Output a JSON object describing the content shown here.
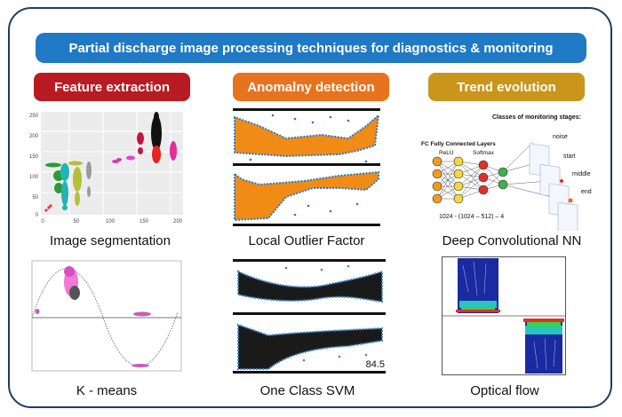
{
  "title": "Partial discharge image processing techniques for diagnostics & monitoring",
  "colors": {
    "banner": "#1f79c4",
    "feature": "#b81c22",
    "anomaly": "#e8731e",
    "trend": "#c9951b",
    "frame": "#1f3c63"
  },
  "columns": [
    {
      "header": "Feature extraction",
      "methods": [
        "Image segmentation",
        "K - means"
      ]
    },
    {
      "header": "Anomalny detection",
      "methods": [
        "Local Outlier Factor",
        "One Class SVM"
      ]
    },
    {
      "header": "Trend evolution",
      "methods": [
        "Deep Convolutional NN",
        "Optical flow"
      ]
    }
  ],
  "segmentation_chart": {
    "y_ticks": [
      "250",
      "200",
      "150",
      "100",
      "50",
      "0"
    ],
    "x_ticks": [
      "0",
      "50",
      "100",
      "150",
      "200"
    ]
  },
  "cnn": {
    "stages_title": "Classes of monitoring stages:",
    "stages": [
      "noise",
      "start",
      "middle",
      "end"
    ],
    "fc_title": "FC Fully Connected Layers",
    "relu_label": "ReLU",
    "softmax_label": "Softmax",
    "formula": "1024  -  (1024 – 512) – 4"
  },
  "ocsvm_value": "84.5"
}
